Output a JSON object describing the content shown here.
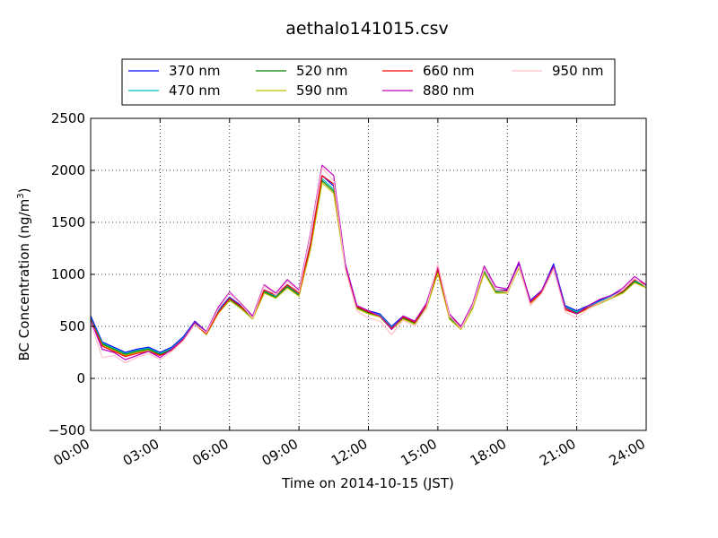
{
  "chart_data": {
    "type": "line",
    "title": "aethalo141015.csv",
    "xlabel": "Time on 2014-10-15 (JST)",
    "ylabel_main": "BC Concentration (ng/m",
    "ylabel_sup": "3",
    "ylabel_end": ")",
    "xlim": [
      "00:00",
      "24:00"
    ],
    "ylim": [
      -500,
      2500
    ],
    "x_ticks": [
      "00:00",
      "03:00",
      "06:00",
      "09:00",
      "12:00",
      "15:00",
      "18:00",
      "21:00",
      "24:00"
    ],
    "y_ticks": [
      "−500",
      "0",
      "500",
      "1000",
      "1500",
      "2000",
      "2500"
    ],
    "grid": true,
    "legend_position": "top",
    "legend_columns": 4,
    "x_hours": [
      0,
      0.5,
      1,
      1.5,
      2,
      2.5,
      3,
      3.5,
      4,
      4.5,
      5,
      5.5,
      6,
      6.5,
      7,
      7.5,
      8,
      8.5,
      9,
      9.5,
      10,
      10.5,
      11,
      11.5,
      12,
      12.5,
      13,
      13.5,
      14,
      14.5,
      15,
      15.5,
      16,
      16.5,
      17,
      17.5,
      18,
      18.5,
      19,
      19.5,
      20,
      20.5,
      21,
      21.5,
      22,
      22.5,
      23,
      23.5,
      24
    ],
    "series": [
      {
        "name": "370 nm",
        "color": "#0000ff",
        "values": [
          600,
          350,
          300,
          250,
          280,
          300,
          250,
          300,
          400,
          550,
          450,
          650,
          780,
          700,
          600,
          850,
          800,
          900,
          820,
          1300,
          1950,
          1850,
          1100,
          700,
          650,
          620,
          500,
          600,
          550,
          700,
          1050,
          600,
          500,
          700,
          1050,
          850,
          850,
          1100,
          750,
          850,
          1100,
          700,
          650,
          700,
          750,
          800,
          850,
          950,
          900
        ]
      },
      {
        "name": "470 nm",
        "color": "#00bfbf",
        "values": [
          580,
          340,
          290,
          240,
          270,
          290,
          240,
          290,
          390,
          540,
          440,
          640,
          770,
          690,
          590,
          840,
          790,
          890,
          810,
          1280,
          1920,
          1820,
          1080,
          690,
          640,
          610,
          490,
          590,
          540,
          690,
          1030,
          590,
          490,
          690,
          1030,
          840,
          840,
          1080,
          740,
          840,
          1080,
          690,
          640,
          690,
          740,
          790,
          840,
          940,
          890
        ]
      },
      {
        "name": "520 nm",
        "color": "#008000",
        "values": [
          570,
          330,
          280,
          230,
          260,
          280,
          230,
          280,
          380,
          530,
          430,
          630,
          760,
          680,
          580,
          830,
          780,
          880,
          800,
          1260,
          1900,
          1800,
          1070,
          680,
          630,
          600,
          480,
          580,
          530,
          680,
          1020,
          580,
          480,
          680,
          1020,
          830,
          830,
          1070,
          730,
          830,
          1070,
          680,
          630,
          680,
          730,
          780,
          830,
          930,
          880
        ]
      },
      {
        "name": "590 nm",
        "color": "#bfbf00",
        "values": [
          560,
          320,
          270,
          220,
          250,
          270,
          220,
          270,
          370,
          520,
          420,
          620,
          750,
          670,
          570,
          820,
          770,
          870,
          790,
          1240,
          1880,
          1780,
          1060,
          670,
          620,
          590,
          470,
          570,
          520,
          670,
          1010,
          570,
          470,
          670,
          1010,
          820,
          820,
          1060,
          720,
          820,
          1060,
          670,
          620,
          670,
          720,
          770,
          820,
          920,
          870
        ]
      },
      {
        "name": "660 nm",
        "color": "#ff0000",
        "values": [
          560,
          310,
          260,
          210,
          240,
          260,
          220,
          270,
          370,
          520,
          430,
          630,
          770,
          690,
          590,
          850,
          800,
          900,
          820,
          1290,
          1950,
          1870,
          1070,
          690,
          640,
          600,
          480,
          590,
          540,
          700,
          1050,
          600,
          490,
          700,
          1050,
          850,
          840,
          1080,
          730,
          830,
          1050,
          660,
          620,
          680,
          730,
          780,
          840,
          950,
          900
        ]
      },
      {
        "name": "880 nm",
        "color": "#bf00bf",
        "values": [
          560,
          280,
          250,
          180,
          220,
          260,
          200,
          280,
          380,
          540,
          450,
          680,
          830,
          720,
          600,
          900,
          820,
          950,
          850,
          1400,
          2050,
          1950,
          1100,
          700,
          650,
          600,
          470,
          600,
          550,
          720,
          1080,
          620,
          500,
          720,
          1080,
          880,
          860,
          1120,
          740,
          850,
          1080,
          680,
          620,
          700,
          760,
          800,
          870,
          980,
          900
        ]
      },
      {
        "name": "950 nm",
        "color": "#ffc0cb",
        "values": [
          540,
          200,
          220,
          150,
          200,
          240,
          180,
          260,
          360,
          520,
          440,
          660,
          820,
          710,
          580,
          890,
          800,
          930,
          830,
          1380,
          2020,
          1900,
          1050,
          650,
          580,
          550,
          420,
          560,
          500,
          680,
          1100,
          600,
          480,
          700,
          1050,
          850,
          830,
          1080,
          700,
          820,
          1050,
          640,
          580,
          670,
          730,
          780,
          850,
          960,
          880
        ]
      }
    ]
  }
}
